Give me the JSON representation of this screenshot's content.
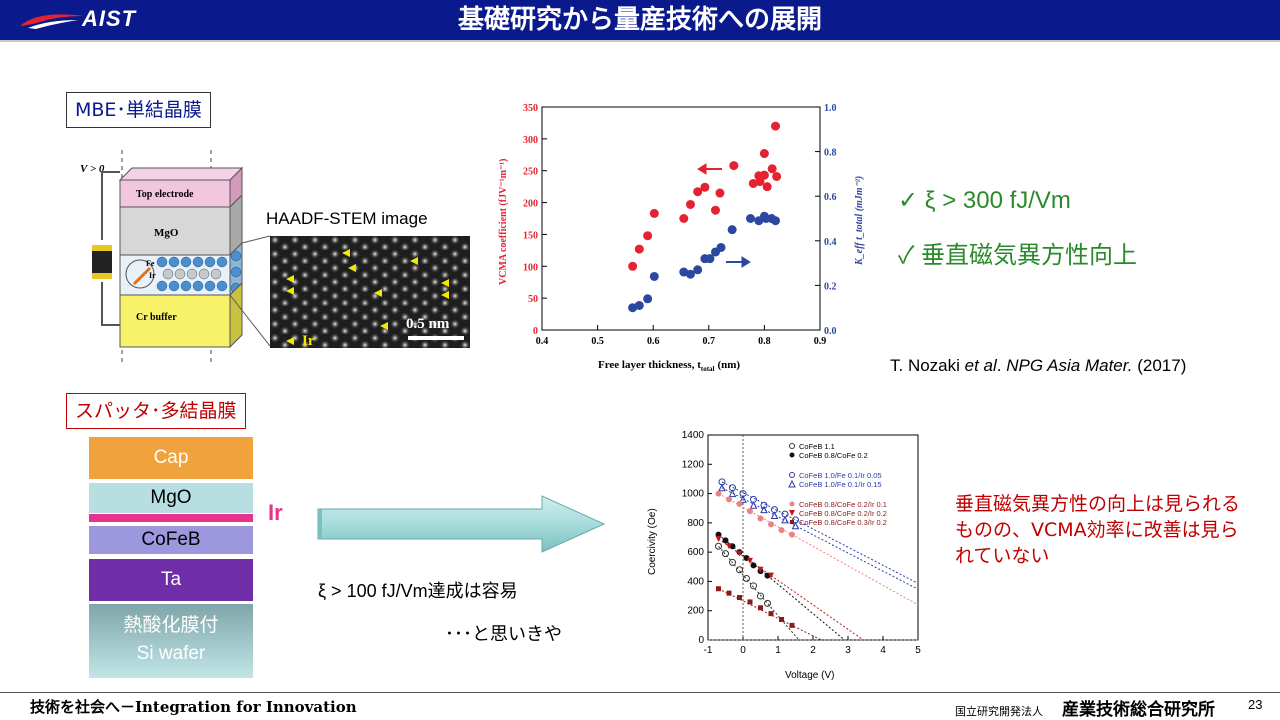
{
  "header": {
    "logo_text": "AIST",
    "title": "基礎研究から量産技術への展開"
  },
  "mbe": {
    "label": "MBE･単結晶膜",
    "diagram": {
      "voltage": "V > 0",
      "layers": [
        "Top electrode",
        "MgO",
        "Fe",
        "Ir",
        "Cr buffer"
      ]
    },
    "haadf_caption": "HAADF-STEM  image",
    "haadf_scale": "0.5 nm",
    "haadf_ir": "Ir"
  },
  "chart_data": [
    {
      "type": "scatter",
      "xlabel_main": "Free layer thickness, t",
      "xlabel_sub": "total",
      "xlabel_unit": "(nm)",
      "ylabel_left": "VCMA coefficient (fJV⁻¹m⁻¹)",
      "ylabel_right": "K_eff t_total (mJm⁻²)",
      "xlim": [
        0.4,
        0.9
      ],
      "ylim_left": [
        0,
        350
      ],
      "ylim_right": [
        0.0,
        1.0
      ],
      "x_ticks": [
        "0.4",
        "0.5",
        "0.6",
        "0.7",
        "0.8",
        "0.9"
      ],
      "y_left_ticks": [
        "0",
        "50",
        "100",
        "150",
        "200",
        "250",
        "300",
        "350"
      ],
      "y_right_ticks": [
        "0.0",
        "0.2",
        "0.4",
        "0.6",
        "0.8",
        "1.0"
      ],
      "colors": {
        "left": "#e52232",
        "right": "#2b48a0"
      },
      "series": [
        {
          "axis": "left",
          "x": [
            0.563,
            0.575,
            0.59,
            0.602,
            0.655,
            0.667,
            0.68,
            0.693,
            0.712,
            0.72,
            0.745,
            0.78,
            0.79,
            0.792,
            0.8,
            0.8,
            0.805,
            0.814,
            0.82,
            0.822
          ],
          "values": [
            100,
            127,
            148,
            183,
            175,
            197,
            217,
            224,
            188,
            215,
            258,
            230,
            242,
            233,
            277,
            243,
            225,
            253,
            320,
            241
          ]
        },
        {
          "axis": "right",
          "x": [
            0.563,
            0.575,
            0.59,
            0.602,
            0.655,
            0.667,
            0.68,
            0.693,
            0.702,
            0.712,
            0.722,
            0.742,
            0.775,
            0.79,
            0.8,
            0.803,
            0.813,
            0.82
          ],
          "values": [
            0.1,
            0.11,
            0.14,
            0.24,
            0.26,
            0.25,
            0.27,
            0.32,
            0.32,
            0.35,
            0.37,
            0.45,
            0.5,
            0.49,
            0.51,
            0.5,
            0.5,
            0.49
          ]
        }
      ]
    },
    {
      "type": "line",
      "xlabel": "Voltage (V)",
      "ylabel": "Coercivity (Oe)",
      "xlim": [
        -1,
        5
      ],
      "ylim": [
        0,
        1400
      ],
      "x_ticks": [
        "-1",
        "0",
        "1",
        "2",
        "3",
        "4",
        "5"
      ],
      "y_ticks": [
        "0",
        "200",
        "400",
        "600",
        "800",
        "1000",
        "1200",
        "1400"
      ],
      "series": [
        {
          "name": "CoFeB 1.1",
          "marker": "open-circle",
          "color": "#333333",
          "x": [
            -0.7,
            -0.5,
            -0.3,
            -0.1,
            0.1,
            0.3,
            0.5,
            0.7
          ],
          "values": [
            640,
            590,
            530,
            480,
            420,
            370,
            300,
            250
          ]
        },
        {
          "name": "CoFeB 0.8/CoFe 0.2",
          "marker": "filled-circle",
          "color": "#111111",
          "x": [
            -0.7,
            -0.5,
            -0.3,
            -0.1,
            0.1,
            0.3,
            0.5,
            0.7
          ],
          "values": [
            720,
            680,
            640,
            600,
            560,
            510,
            470,
            440
          ]
        },
        {
          "name": "CoFeB 1.0/Fe 0.1/Ir 0.05",
          "marker": "open-circle",
          "color": "#2b3ba8",
          "x": [
            -0.6,
            -0.3,
            0,
            0.3,
            0.6,
            0.9,
            1.2,
            1.5
          ],
          "values": [
            1080,
            1040,
            1000,
            960,
            920,
            890,
            860,
            820
          ]
        },
        {
          "name": "CoFeB 1.0/Fe 0.1/Ir 0.15",
          "marker": "open-triangle",
          "color": "#2b3ba8",
          "x": [
            -0.6,
            -0.3,
            0,
            0.3,
            0.6,
            0.9,
            1.2,
            1.5
          ],
          "values": [
            1040,
            1000,
            960,
            920,
            890,
            850,
            820,
            780
          ]
        },
        {
          "name": "CoFeB 0.8/CoFe 0.2/Ir 0.1",
          "marker": "filled-circle",
          "color": "#f08080",
          "x": [
            -0.7,
            -0.4,
            -0.1,
            0.2,
            0.5,
            0.8,
            1.1,
            1.4
          ],
          "values": [
            1000,
            960,
            930,
            880,
            830,
            790,
            750,
            720
          ]
        },
        {
          "name": "CoFeB 0.8/CoFe 0.2/Ir 0.2",
          "marker": "filled-triangle",
          "color": "#c01818",
          "x": [
            -0.7,
            -0.4,
            -0.1,
            0.2,
            0.5,
            0.8
          ],
          "values": [
            690,
            640,
            590,
            540,
            480,
            440
          ]
        },
        {
          "name": "CoFeB 0.8/CoFe 0.3/Ir 0.2",
          "marker": "filled-square",
          "color": "#8b1a1a",
          "x": [
            -0.7,
            -0.4,
            -0.1,
            0.2,
            0.5,
            0.8,
            1.1,
            1.4
          ],
          "values": [
            350,
            320,
            290,
            260,
            220,
            180,
            140,
            100
          ]
        }
      ]
    }
  ],
  "results": {
    "check1": "✓ ξ > 300 fJ/Vm",
    "check2": "✓ 垂直磁気異方性向上"
  },
  "citation": {
    "authors": "T. Nozaki ",
    "etal": "et al",
    "dot": ". ",
    "journal": "NPG Asia Mater.",
    "year": " (2017)"
  },
  "sputter": {
    "label": "スパッタ･多結晶膜",
    "layers": {
      "cap": "Cap",
      "mgo": "MgO",
      "cofeb": "CoFeB",
      "ta": "Ta",
      "sub1": "熱酸化膜付",
      "sub2": "Si wafer"
    },
    "ir_label": "Ir",
    "text1": "ξ > 100 fJ/Vm達成は容易",
    "text2": "･･･と思いきや",
    "note": "垂直磁気異方性の向上は見られるものの、VCMA効率に改善は見られていない"
  },
  "footer": {
    "left": "技術を社会へ－Integration for Innovation",
    "org_small": "国立研究開発法人",
    "org": "産業技術総合研究所",
    "page": "23"
  }
}
